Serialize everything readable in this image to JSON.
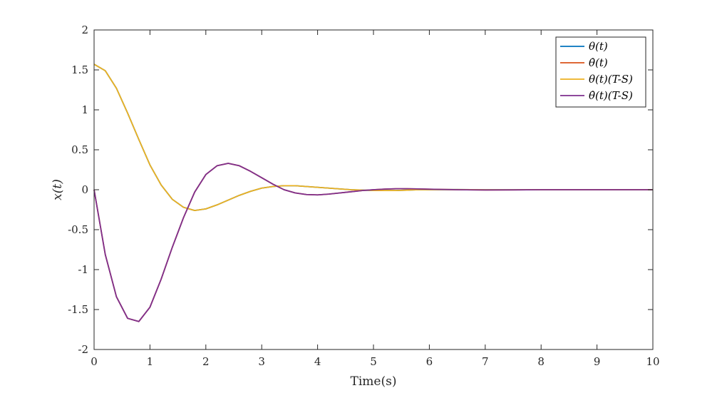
{
  "chart_data": {
    "type": "line",
    "title": "",
    "xlabel": "Time(s)",
    "ylabel": "x(t)",
    "xlim": [
      0,
      10
    ],
    "ylim": [
      -2,
      2
    ],
    "xticks": [
      0,
      1,
      2,
      3,
      4,
      5,
      6,
      7,
      8,
      9,
      10
    ],
    "yticks": [
      -2,
      -1.5,
      -1,
      -0.5,
      0,
      0.5,
      1,
      1.5,
      2
    ],
    "xtick_labels": [
      "0",
      "1",
      "2",
      "3",
      "4",
      "5",
      "6",
      "7",
      "8",
      "9",
      "10"
    ],
    "ytick_labels": [
      "-2",
      "-1.5",
      "-1",
      "-0.5",
      "0",
      "0.5",
      "1",
      "1.5",
      "2"
    ],
    "grid": false,
    "legend_position": "top-right",
    "x": [
      0,
      0.2,
      0.4,
      0.6,
      0.8,
      1.0,
      1.2,
      1.4,
      1.6,
      1.8,
      2.0,
      2.2,
      2.4,
      2.6,
      2.8,
      3.0,
      3.2,
      3.4,
      3.6,
      3.8,
      4.0,
      4.2,
      4.4,
      4.6,
      4.8,
      5.0,
      5.2,
      5.4,
      5.6,
      5.8,
      6.0,
      6.5,
      7.0,
      7.5,
      8.0,
      8.5,
      9.0,
      9.5,
      10.0
    ],
    "series": [
      {
        "name": "θ(t)",
        "color": "#0072BD",
        "values": [
          1.571,
          1.49,
          1.27,
          0.96,
          0.63,
          0.31,
          0.06,
          -0.12,
          -0.22,
          -0.26,
          -0.24,
          -0.19,
          -0.13,
          -0.07,
          -0.02,
          0.02,
          0.04,
          0.05,
          0.05,
          0.04,
          0.03,
          0.02,
          0.01,
          0.0,
          -0.005,
          -0.01,
          -0.01,
          -0.01,
          -0.005,
          0.0,
          0.0,
          0.002,
          0.0,
          -0.001,
          0.0,
          0.0,
          0.0,
          0.0,
          0.0
        ]
      },
      {
        "name": "θ̇(t)",
        "color": "#D95319",
        "values": [
          0.0,
          -0.81,
          -1.34,
          -1.61,
          -1.65,
          -1.47,
          -1.12,
          -0.72,
          -0.35,
          -0.03,
          0.19,
          0.3,
          0.33,
          0.3,
          0.23,
          0.15,
          0.07,
          0.0,
          -0.04,
          -0.06,
          -0.065,
          -0.055,
          -0.04,
          -0.025,
          -0.01,
          0.0,
          0.008,
          0.012,
          0.012,
          0.01,
          0.007,
          0.0,
          -0.003,
          -0.002,
          0.0,
          0.0,
          0.0,
          0.0,
          0.0
        ]
      },
      {
        "name": "θ(t)(T-S)",
        "color": "#EDB120",
        "values": [
          1.571,
          1.49,
          1.27,
          0.96,
          0.63,
          0.31,
          0.06,
          -0.12,
          -0.22,
          -0.26,
          -0.24,
          -0.19,
          -0.13,
          -0.07,
          -0.02,
          0.02,
          0.04,
          0.05,
          0.05,
          0.04,
          0.03,
          0.02,
          0.01,
          0.0,
          -0.005,
          -0.01,
          -0.01,
          -0.01,
          -0.005,
          0.0,
          0.0,
          0.002,
          0.0,
          -0.001,
          0.0,
          0.0,
          0.0,
          0.0,
          0.0
        ]
      },
      {
        "name": "θ̇(t)(T-S)",
        "color": "#7E2F8E",
        "values": [
          0.0,
          -0.81,
          -1.34,
          -1.61,
          -1.65,
          -1.47,
          -1.12,
          -0.72,
          -0.35,
          -0.03,
          0.19,
          0.3,
          0.33,
          0.3,
          0.23,
          0.15,
          0.07,
          0.0,
          -0.04,
          -0.06,
          -0.065,
          -0.055,
          -0.04,
          -0.025,
          -0.01,
          0.0,
          0.008,
          0.012,
          0.012,
          0.01,
          0.007,
          0.0,
          -0.003,
          -0.002,
          0.0,
          0.0,
          0.0,
          0.0,
          0.0
        ]
      }
    ]
  }
}
